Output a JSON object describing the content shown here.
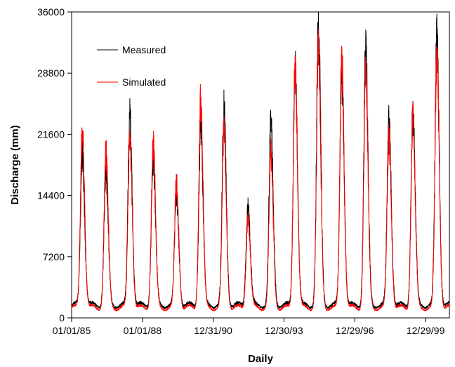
{
  "chart_data": {
    "type": "line",
    "title": "",
    "xlabel": "Daily",
    "ylabel": "Discharge (mm)",
    "ylim": [
      0,
      36000
    ],
    "yticks": [
      "0",
      "7200",
      "14400",
      "21600",
      "28800",
      "36000"
    ],
    "xlim": [
      "1985-01-01",
      "2000-12-31"
    ],
    "xticks": [
      "01/01/85",
      "01/01/88",
      "12/31/90",
      "12/30/93",
      "12/29/96",
      "12/29/99"
    ],
    "xtick_dates": [
      "1985-01-01",
      "1988-01-01",
      "1990-12-31",
      "1993-12-30",
      "1996-12-29",
      "1999-12-29"
    ],
    "grid": false,
    "legend_position": "top-left",
    "series": [
      {
        "name": "Measured",
        "color": "#000000",
        "base": 1500,
        "peaks": [
          {
            "date": "1985-06-15",
            "value": 19500
          },
          {
            "date": "1986-06-15",
            "value": 17000
          },
          {
            "date": "1987-06-20",
            "value": 23800
          },
          {
            "date": "1988-06-15",
            "value": 18500
          },
          {
            "date": "1989-06-10",
            "value": 14500
          },
          {
            "date": "1990-06-20",
            "value": 22600
          },
          {
            "date": "1991-06-15",
            "value": 24300
          },
          {
            "date": "1992-06-20",
            "value": 13300
          },
          {
            "date": "1993-06-10",
            "value": 22800
          },
          {
            "date": "1994-06-20",
            "value": 29500
          },
          {
            "date": "1995-06-15",
            "value": 34200
          },
          {
            "date": "1996-06-10",
            "value": 29500
          },
          {
            "date": "1997-06-15",
            "value": 31200
          },
          {
            "date": "1998-06-10",
            "value": 23000
          },
          {
            "date": "1999-06-15",
            "value": 24000
          },
          {
            "date": "2000-06-20",
            "value": 32800
          }
        ]
      },
      {
        "name": "Simulated",
        "color": "#ff0000",
        "base": 1200,
        "peaks": [
          {
            "date": "1985-06-15",
            "value": 22500
          },
          {
            "date": "1986-06-15",
            "value": 19300
          },
          {
            "date": "1987-06-20",
            "value": 21000
          },
          {
            "date": "1988-06-15",
            "value": 20500
          },
          {
            "date": "1989-06-10",
            "value": 15800
          },
          {
            "date": "1990-06-20",
            "value": 25500
          },
          {
            "date": "1991-06-15",
            "value": 22000
          },
          {
            "date": "1992-06-20",
            "value": 12000
          },
          {
            "date": "1993-06-10",
            "value": 19000
          },
          {
            "date": "1994-06-20",
            "value": 29800
          },
          {
            "date": "1995-06-15",
            "value": 31500
          },
          {
            "date": "1996-06-10",
            "value": 30600
          },
          {
            "date": "1997-06-15",
            "value": 28500
          },
          {
            "date": "1998-06-10",
            "value": 21200
          },
          {
            "date": "1999-06-15",
            "value": 23800
          },
          {
            "date": "2000-06-20",
            "value": 31200
          }
        ]
      }
    ]
  }
}
